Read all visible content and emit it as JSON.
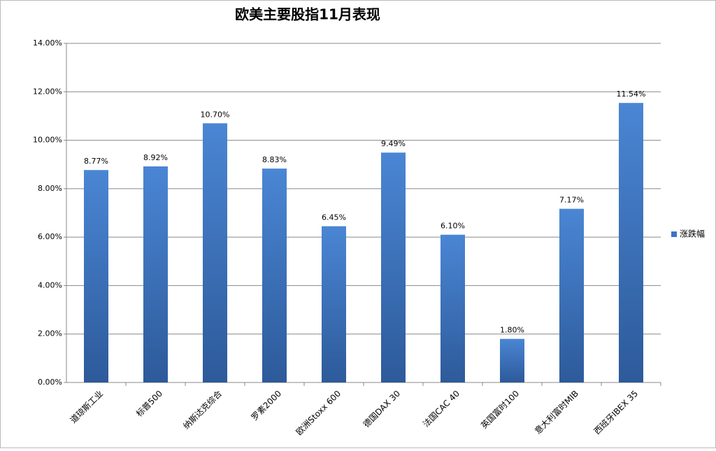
{
  "chart_data": {
    "type": "bar",
    "title": "欧美主要股指11月表现",
    "categories": [
      "道琼斯工业",
      "标普500",
      "纳斯达克综合",
      "罗素2000",
      "欧洲Stoxx 600",
      "德国DAX 30",
      "法国CAC 40",
      "英国富时100",
      "意大利富时MIB",
      "西班牙IBEX 35"
    ],
    "series": [
      {
        "name": "涨跌幅",
        "color": "#3a75c4",
        "values": [
          8.77,
          8.92,
          10.7,
          8.83,
          6.45,
          9.49,
          6.1,
          1.8,
          7.17,
          11.54
        ],
        "value_labels": [
          "8.77%",
          "8.92%",
          "10.70%",
          "8.83%",
          "6.45%",
          "9.49%",
          "6.10%",
          "1.80%",
          "7.17%",
          "11.54%"
        ]
      }
    ],
    "ylim": [
      0,
      14
    ],
    "yticks": [
      {
        "value": 0,
        "label": "0.00%"
      },
      {
        "value": 2,
        "label": "2.00%"
      },
      {
        "value": 4,
        "label": "4.00%"
      },
      {
        "value": 6,
        "label": "6.00%"
      },
      {
        "value": 8,
        "label": "8.00%"
      },
      {
        "value": 10,
        "label": "10.00%"
      },
      {
        "value": 12,
        "label": "12.00%"
      },
      {
        "value": 14,
        "label": "14.00%"
      }
    ],
    "grid": true,
    "legend": "right"
  }
}
